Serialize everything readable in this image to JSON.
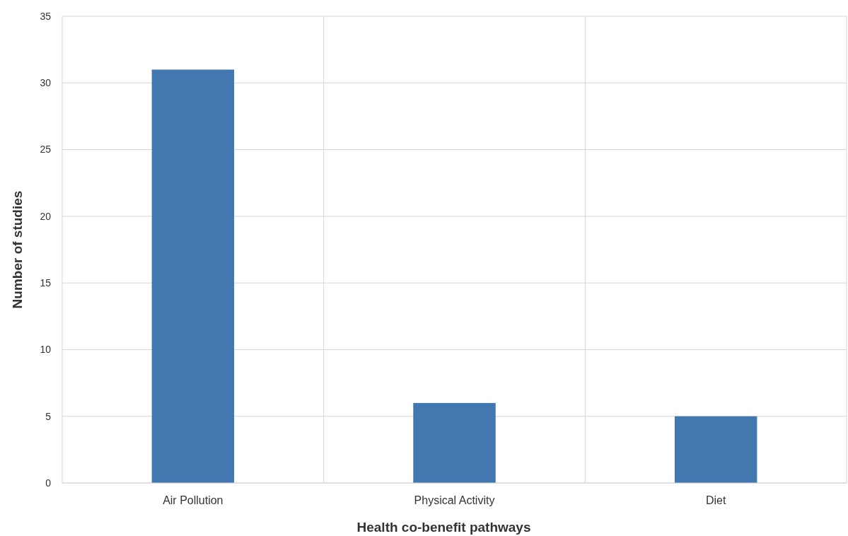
{
  "chart_data": {
    "type": "bar",
    "xlabel": "Health co-benefit pathways",
    "ylabel": "Number of studies",
    "categories": [
      "Air Pollution",
      "Physical Activity",
      "Diet"
    ],
    "values": [
      31,
      6,
      5
    ],
    "color": "#4277b0",
    "ylim": [
      0,
      35
    ],
    "yticks": [
      0,
      5,
      10,
      15,
      20,
      25,
      30,
      35
    ],
    "grid": true
  }
}
